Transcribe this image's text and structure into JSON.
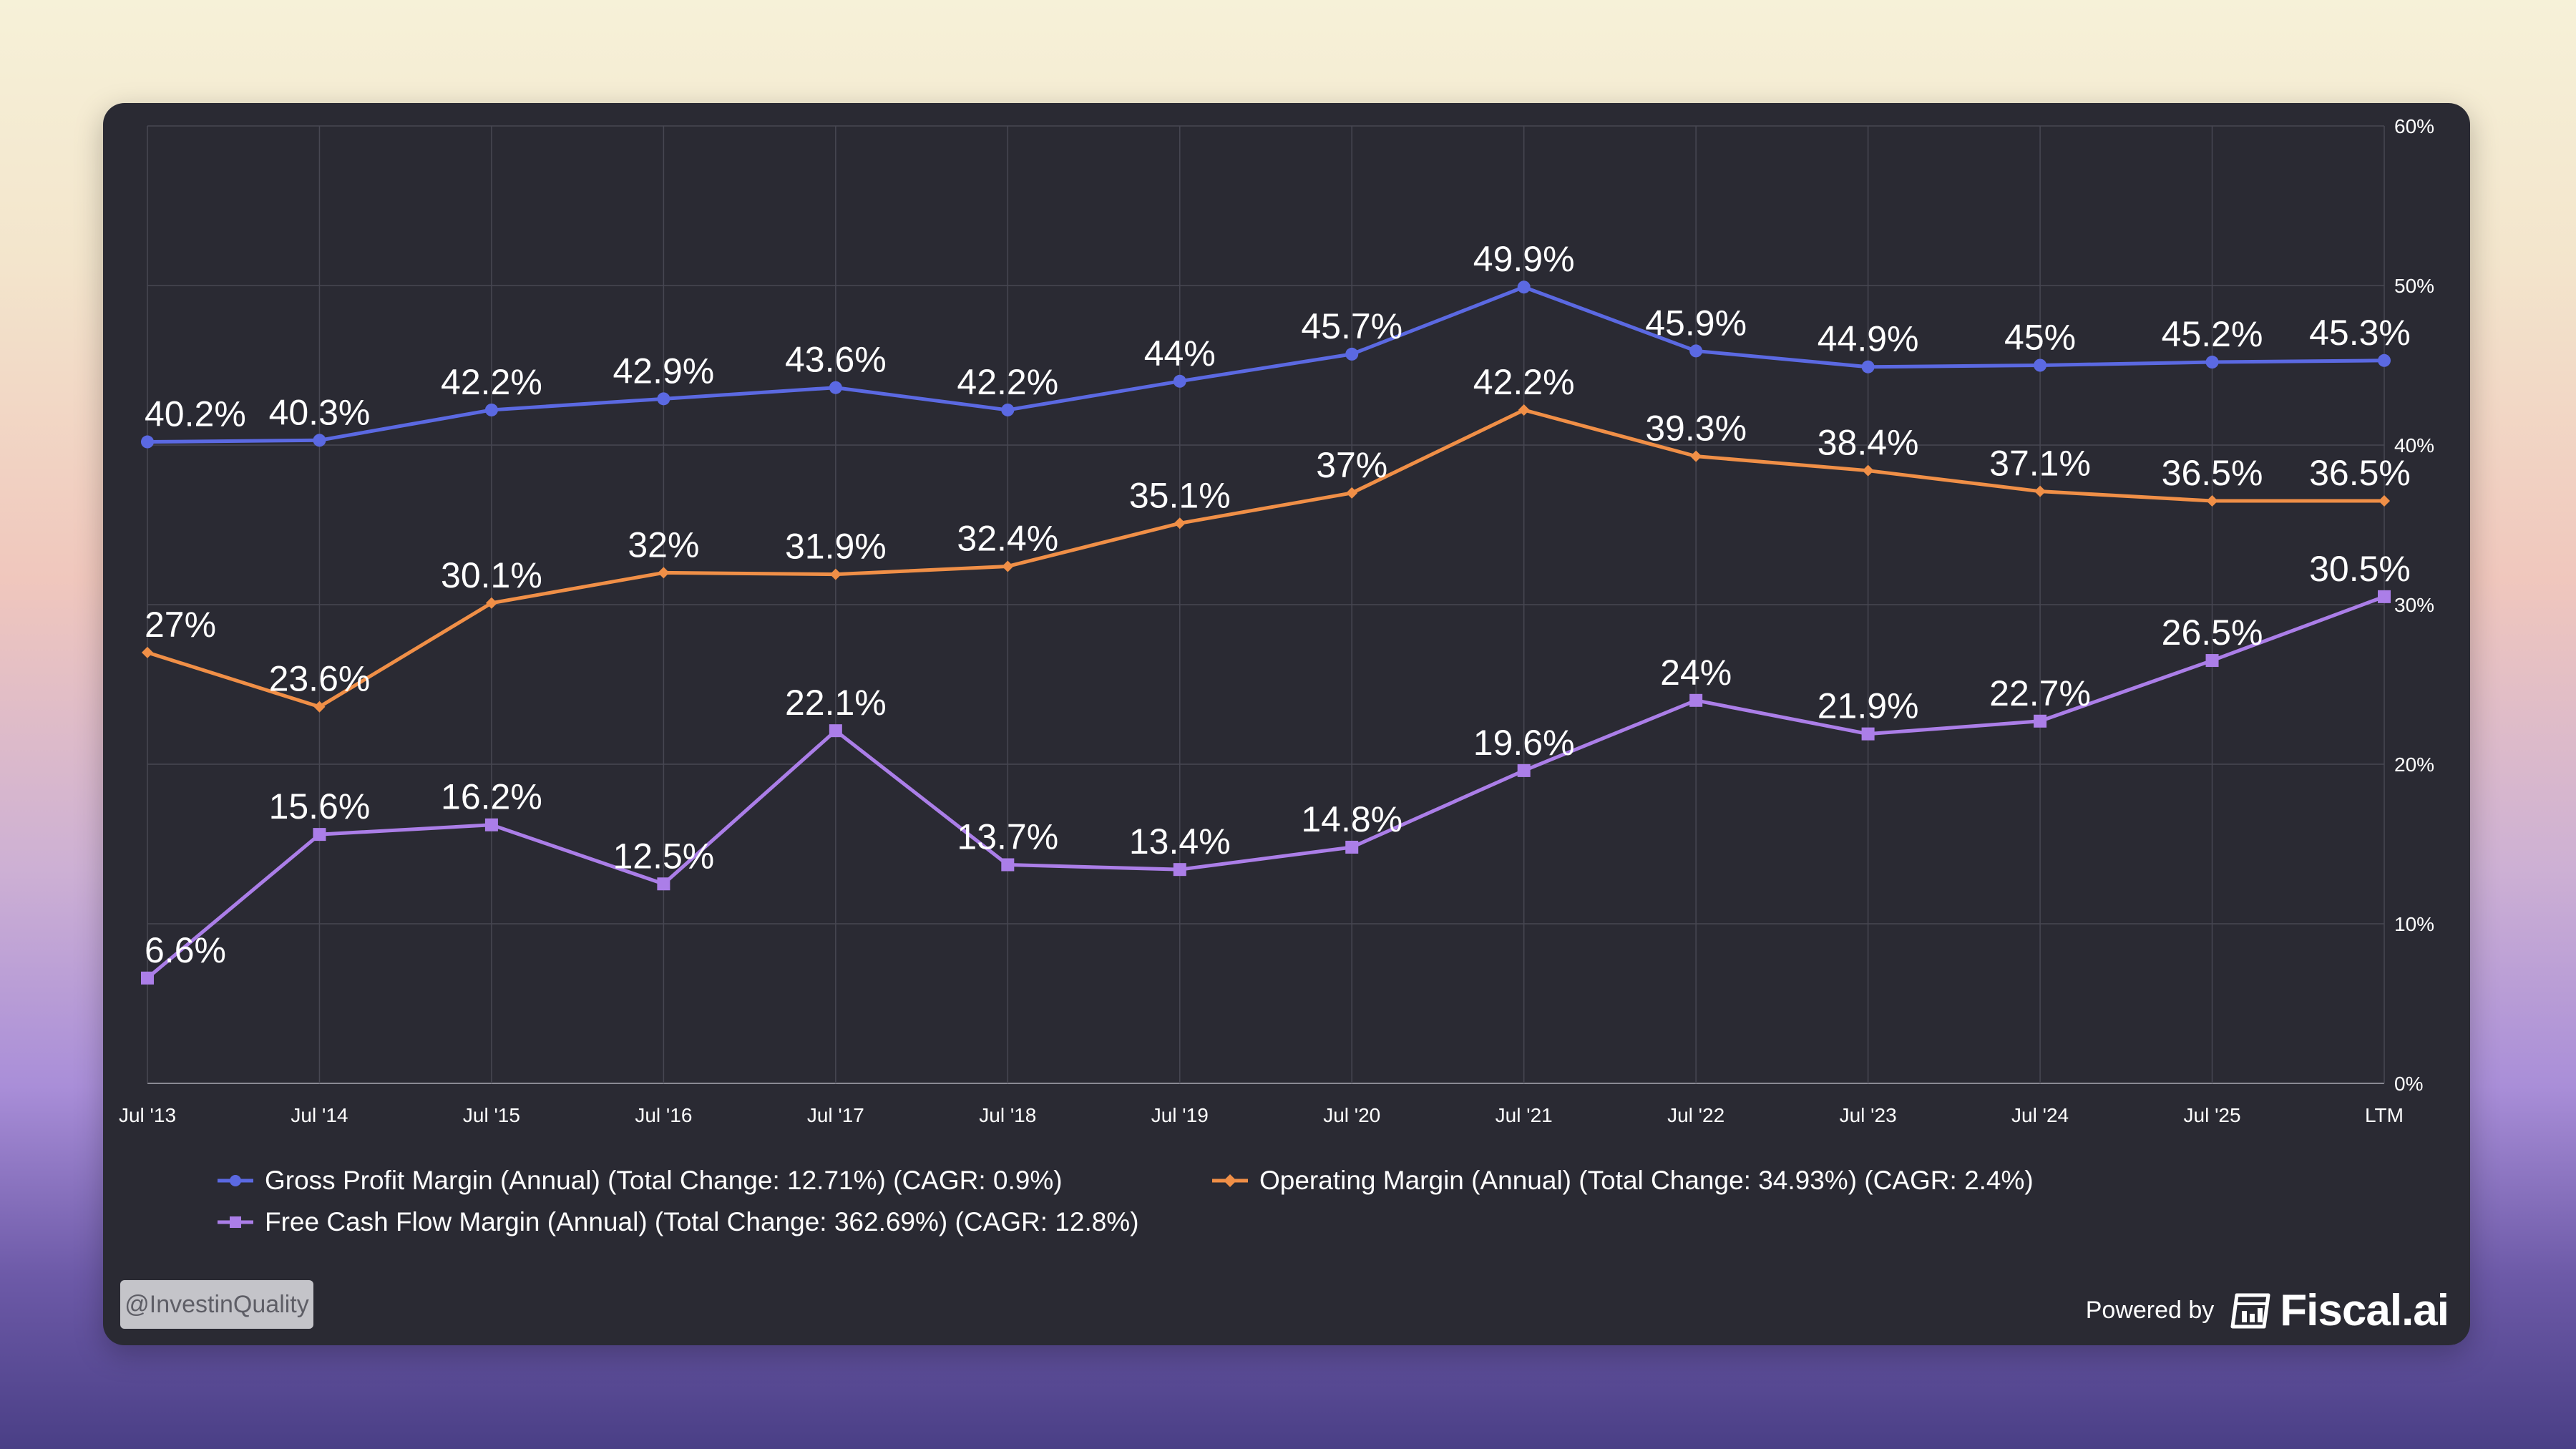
{
  "chart_data": {
    "type": "line",
    "categories": [
      "Jul '13",
      "Jul '14",
      "Jul '15",
      "Jul '16",
      "Jul '17",
      "Jul '18",
      "Jul '19",
      "Jul '20",
      "Jul '21",
      "Jul '22",
      "Jul '23",
      "Jul '24",
      "Jul '25",
      "LTM"
    ],
    "ylim": [
      0,
      60
    ],
    "yticks": [
      "0%",
      "10%",
      "20%",
      "30%",
      "40%",
      "50%",
      "60%"
    ],
    "grid": true,
    "y_axis_side": "right",
    "series": [
      {
        "name": "Gross Profit Margin (Annual)",
        "color": "#5b69e2",
        "marker": "circle",
        "values": [
          40.2,
          40.3,
          42.2,
          42.9,
          43.6,
          42.2,
          44,
          45.7,
          49.9,
          45.9,
          44.9,
          45,
          45.2,
          45.3
        ],
        "labels": [
          "40.2%",
          "40.3%",
          "42.2%",
          "42.9%",
          "43.6%",
          "42.2%",
          "44%",
          "45.7%",
          "49.9%",
          "45.9%",
          "44.9%",
          "45%",
          "45.2%",
          "45.3%"
        ]
      },
      {
        "name": "Operating Margin (Annual)",
        "color": "#f08f47",
        "marker": "diamond",
        "values": [
          27,
          23.6,
          30.1,
          32,
          31.9,
          32.4,
          35.1,
          37,
          42.2,
          39.3,
          38.4,
          37.1,
          36.5,
          36.5
        ],
        "labels": [
          "27%",
          "23.6%",
          "30.1%",
          "32%",
          "31.9%",
          "32.4%",
          "35.1%",
          "37%",
          "42.2%",
          "39.3%",
          "38.4%",
          "37.1%",
          "36.5%",
          "36.5%"
        ]
      },
      {
        "name": "Free Cash Flow Margin (Annual)",
        "color": "#ab7ee8",
        "marker": "square",
        "values": [
          6.6,
          15.6,
          16.2,
          12.5,
          22.1,
          13.7,
          13.4,
          14.8,
          19.6,
          24,
          21.9,
          22.7,
          26.5,
          30.5
        ],
        "labels": [
          "6.6%",
          "15.6%",
          "16.2%",
          "12.5%",
          "22.1%",
          "13.7%",
          "13.4%",
          "14.8%",
          "19.6%",
          "24%",
          "21.9%",
          "22.7%",
          "26.5%",
          "30.5%"
        ]
      }
    ]
  },
  "legend": {
    "gross": "Gross Profit Margin (Annual) (Total Change: 12.71%) (CAGR: 0.9%)",
    "operating": "Operating Margin (Annual) (Total Change: 34.93%) (CAGR: 2.4%)",
    "fcf": "Free Cash Flow Margin (Annual) (Total Change: 362.69%) (CAGR: 12.8%)"
  },
  "watermark": {
    "handle": "@InvestinQuality"
  },
  "branding": {
    "powered_by": "Powered by",
    "name": "Fiscal.ai"
  },
  "colors": {
    "panel_bg": "#2a2a33",
    "grid": "#474752",
    "axis_text": "#ffffff"
  }
}
